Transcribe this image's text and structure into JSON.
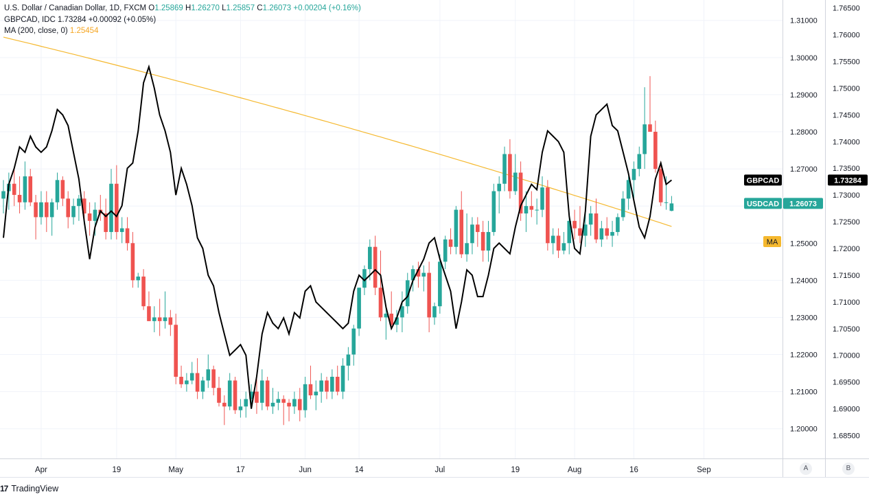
{
  "legend": {
    "main_title": "U.S. Dollar / Canadian Dollar, 1D, FXCM",
    "o_label": "O",
    "o_value": "1.25869",
    "h_label": "H",
    "h_value": "1.26270",
    "l_label": "L",
    "l_value": "1.25857",
    "c_label": "C",
    "c_value": "1.26073",
    "change": "+0.00204 (+0.16%)",
    "compare_title": "GBPCAD, IDC",
    "compare_value": "1.73284",
    "compare_change": "+0.00092 (+0.05%)",
    "ma_title": "MA (200, close, 0)",
    "ma_value": "1.25454"
  },
  "brand": {
    "name": "TradingView",
    "logo": "17"
  },
  "scale_buttons": {
    "left": "A",
    "right": "B"
  },
  "colors": {
    "up": "#26a69a",
    "down": "#ef5350",
    "compare": "#000000",
    "ma": "#f5b82e",
    "grid": "#f0f3fa"
  },
  "chart_data": {
    "type": "candlestick",
    "title": "U.S. Dollar / Canadian Dollar, 1D, FXCM",
    "x_tick_labels": [
      "Apr",
      "19",
      "May",
      "17",
      "Jun",
      "14",
      "Jul",
      "19",
      "Aug",
      "16",
      "Sep"
    ],
    "left_axis": {
      "label": "USDCAD",
      "ylim": [
        1.192,
        1.3155
      ],
      "ticks": [
        "1.20000",
        "1.21000",
        "1.22000",
        "1.23000",
        "1.24000",
        "1.25000",
        "1.26000",
        "1.27000",
        "1.28000",
        "1.29000",
        "1.30000",
        "1.31000"
      ]
    },
    "right_axis": {
      "label": "GBPCAD",
      "ylim": [
        1.6807,
        1.7665
      ],
      "ticks": [
        "1.68500",
        "1.69000",
        "1.69500",
        "1.70000",
        "1.70500",
        "1.71000",
        "1.71500",
        "1.72000",
        "1.72500",
        "1.73000",
        "1.73500",
        "1.74000",
        "1.74500",
        "1.75000",
        "1.75500",
        "1.76000",
        "1.76500"
      ]
    },
    "grid": true,
    "series": [
      {
        "name": "USDCAD",
        "type": "candlestick",
        "ohlc": [
          [
            1.262,
            1.267,
            1.258,
            1.264
          ],
          [
            1.264,
            1.269,
            1.259,
            1.266
          ],
          [
            1.266,
            1.27,
            1.26,
            1.263
          ],
          [
            1.263,
            1.268,
            1.258,
            1.261
          ],
          [
            1.261,
            1.272,
            1.259,
            1.268
          ],
          [
            1.268,
            1.27,
            1.26,
            1.261
          ],
          [
            1.261,
            1.263,
            1.251,
            1.257
          ],
          [
            1.257,
            1.264,
            1.255,
            1.261
          ],
          [
            1.261,
            1.264,
            1.253,
            1.257
          ],
          [
            1.257,
            1.262,
            1.252,
            1.261
          ],
          [
            1.261,
            1.269,
            1.259,
            1.267
          ],
          [
            1.267,
            1.268,
            1.26,
            1.262
          ],
          [
            1.262,
            1.264,
            1.254,
            1.257
          ],
          [
            1.257,
            1.262,
            1.255,
            1.26
          ],
          [
            1.26,
            1.263,
            1.256,
            1.262
          ],
          [
            1.262,
            1.264,
            1.255,
            1.258
          ],
          [
            1.258,
            1.261,
            1.252,
            1.256
          ],
          [
            1.256,
            1.261,
            1.252,
            1.259
          ],
          [
            1.259,
            1.263,
            1.256,
            1.258
          ],
          [
            1.258,
            1.262,
            1.251,
            1.253
          ],
          [
            1.253,
            1.27,
            1.251,
            1.266
          ],
          [
            1.266,
            1.271,
            1.251,
            1.253
          ],
          [
            1.253,
            1.257,
            1.25,
            1.254
          ],
          [
            1.254,
            1.257,
            1.248,
            1.25
          ],
          [
            1.25,
            1.253,
            1.238,
            1.24
          ],
          [
            1.24,
            1.242,
            1.238,
            1.241
          ],
          [
            1.241,
            1.243,
            1.232,
            1.233
          ],
          [
            1.233,
            1.237,
            1.229,
            1.229
          ],
          [
            1.229,
            1.233,
            1.226,
            1.23
          ],
          [
            1.23,
            1.235,
            1.225,
            1.229
          ],
          [
            1.229,
            1.237,
            1.227,
            1.23
          ],
          [
            1.23,
            1.232,
            1.225,
            1.228
          ],
          [
            1.228,
            1.231,
            1.212,
            1.214
          ],
          [
            1.214,
            1.217,
            1.211,
            1.212
          ],
          [
            1.212,
            1.215,
            1.21,
            1.213
          ],
          [
            1.213,
            1.218,
            1.212,
            1.215
          ],
          [
            1.215,
            1.219,
            1.208,
            1.21
          ],
          [
            1.21,
            1.214,
            1.208,
            1.213
          ],
          [
            1.213,
            1.22,
            1.211,
            1.216
          ],
          [
            1.216,
            1.217,
            1.209,
            1.211
          ],
          [
            1.211,
            1.214,
            1.206,
            1.207
          ],
          [
            1.207,
            1.209,
            1.201,
            1.206
          ],
          [
            1.206,
            1.215,
            1.205,
            1.213
          ],
          [
            1.213,
            1.214,
            1.204,
            1.205
          ],
          [
            1.205,
            1.208,
            1.203,
            1.206
          ],
          [
            1.206,
            1.21,
            1.203,
            1.208
          ],
          [
            1.208,
            1.212,
            1.206,
            1.21
          ],
          [
            1.21,
            1.214,
            1.204,
            1.207
          ],
          [
            1.207,
            1.216,
            1.205,
            1.213
          ],
          [
            1.213,
            1.214,
            1.205,
            1.206
          ],
          [
            1.206,
            1.211,
            1.204,
            1.207
          ],
          [
            1.207,
            1.21,
            1.205,
            1.208
          ],
          [
            1.208,
            1.209,
            1.201,
            1.207
          ],
          [
            1.207,
            1.208,
            1.202,
            1.206
          ],
          [
            1.206,
            1.21,
            1.204,
            1.208
          ],
          [
            1.208,
            1.211,
            1.202,
            1.205
          ],
          [
            1.205,
            1.214,
            1.203,
            1.212
          ],
          [
            1.212,
            1.217,
            1.208,
            1.209
          ],
          [
            1.209,
            1.213,
            1.205,
            1.21
          ],
          [
            1.21,
            1.215,
            1.207,
            1.213
          ],
          [
            1.213,
            1.214,
            1.208,
            1.21
          ],
          [
            1.21,
            1.216,
            1.208,
            1.214
          ],
          [
            1.214,
            1.217,
            1.209,
            1.21
          ],
          [
            1.21,
            1.219,
            1.208,
            1.217
          ],
          [
            1.217,
            1.222,
            1.213,
            1.22
          ],
          [
            1.22,
            1.228,
            1.217,
            1.227
          ],
          [
            1.227,
            1.238,
            1.225,
            1.238
          ],
          [
            1.238,
            1.244,
            1.236,
            1.243
          ],
          [
            1.243,
            1.251,
            1.24,
            1.249
          ],
          [
            1.249,
            1.252,
            1.236,
            1.238
          ],
          [
            1.238,
            1.248,
            1.229,
            1.23
          ],
          [
            1.23,
            1.233,
            1.224,
            1.231
          ],
          [
            1.231,
            1.237,
            1.227,
            1.228
          ],
          [
            1.228,
            1.232,
            1.226,
            1.23
          ],
          [
            1.23,
            1.237,
            1.226,
            1.233
          ],
          [
            1.233,
            1.242,
            1.231,
            1.24
          ],
          [
            1.24,
            1.244,
            1.237,
            1.243
          ],
          [
            1.243,
            1.245,
            1.238,
            1.241
          ],
          [
            1.241,
            1.244,
            1.237,
            1.242
          ],
          [
            1.242,
            1.245,
            1.226,
            1.23
          ],
          [
            1.23,
            1.234,
            1.228,
            1.233
          ],
          [
            1.233,
            1.247,
            1.231,
            1.245
          ],
          [
            1.245,
            1.252,
            1.243,
            1.251
          ],
          [
            1.251,
            1.254,
            1.247,
            1.249
          ],
          [
            1.249,
            1.26,
            1.247,
            1.259
          ],
          [
            1.259,
            1.264,
            1.246,
            1.247
          ],
          [
            1.247,
            1.258,
            1.245,
            1.25
          ],
          [
            1.25,
            1.257,
            1.247,
            1.255
          ],
          [
            1.255,
            1.257,
            1.249,
            1.253
          ],
          [
            1.253,
            1.256,
            1.245,
            1.248
          ],
          [
            1.248,
            1.256,
            1.245,
            1.253
          ],
          [
            1.253,
            1.266,
            1.252,
            1.264
          ],
          [
            1.264,
            1.268,
            1.258,
            1.266
          ],
          [
            1.266,
            1.276,
            1.264,
            1.274
          ],
          [
            1.274,
            1.278,
            1.262,
            1.264
          ],
          [
            1.264,
            1.274,
            1.263,
            1.269
          ],
          [
            1.269,
            1.272,
            1.256,
            1.258
          ],
          [
            1.258,
            1.264,
            1.253,
            1.26
          ],
          [
            1.26,
            1.264,
            1.257,
            1.259
          ],
          [
            1.259,
            1.262,
            1.255,
            1.259
          ],
          [
            1.259,
            1.268,
            1.257,
            1.265
          ],
          [
            1.265,
            1.267,
            1.248,
            1.25
          ],
          [
            1.25,
            1.254,
            1.247,
            1.252
          ],
          [
            1.252,
            1.254,
            1.246,
            1.248
          ],
          [
            1.248,
            1.253,
            1.247,
            1.25
          ],
          [
            1.25,
            1.258,
            1.247,
            1.256
          ],
          [
            1.256,
            1.259,
            1.251,
            1.254
          ],
          [
            1.254,
            1.26,
            1.25,
            1.252
          ],
          [
            1.252,
            1.258,
            1.249,
            1.255
          ],
          [
            1.255,
            1.26,
            1.252,
            1.258
          ],
          [
            1.258,
            1.262,
            1.25,
            1.251
          ],
          [
            1.251,
            1.256,
            1.249,
            1.254
          ],
          [
            1.254,
            1.257,
            1.251,
            1.252
          ],
          [
            1.252,
            1.256,
            1.249,
            1.253
          ],
          [
            1.253,
            1.258,
            1.252,
            1.257
          ],
          [
            1.257,
            1.264,
            1.256,
            1.262
          ],
          [
            1.262,
            1.268,
            1.259,
            1.267
          ],
          [
            1.267,
            1.272,
            1.262,
            1.27
          ],
          [
            1.27,
            1.276,
            1.268,
            1.274
          ],
          [
            1.274,
            1.292,
            1.27,
            1.282
          ],
          [
            1.282,
            1.295,
            1.281,
            1.28
          ],
          [
            1.28,
            1.283,
            1.269,
            1.27
          ],
          [
            1.27,
            1.272,
            1.26,
            1.261
          ],
          [
            1.261,
            1.268,
            1.259,
            1.261
          ],
          [
            1.2587,
            1.2627,
            1.2586,
            1.2607
          ]
        ]
      },
      {
        "name": "GBPCAD",
        "type": "line",
        "axis": "right",
        "values": [
          1.722,
          1.732,
          1.735,
          1.739,
          1.738,
          1.741,
          1.739,
          1.738,
          1.739,
          1.742,
          1.746,
          1.745,
          1.743,
          1.738,
          1.733,
          1.725,
          1.718,
          1.724,
          1.727,
          1.726,
          1.727,
          1.726,
          1.728,
          1.735,
          1.736,
          1.742,
          1.751,
          1.754,
          1.75,
          1.745,
          1.742,
          1.738,
          1.73,
          1.735,
          1.732,
          1.728,
          1.722,
          1.72,
          1.715,
          1.713,
          1.708,
          1.704,
          1.7,
          1.701,
          1.702,
          1.7,
          1.69,
          1.696,
          1.704,
          1.708,
          1.706,
          1.705,
          1.707,
          1.704,
          1.708,
          1.707,
          1.712,
          1.713,
          1.71,
          1.709,
          1.708,
          1.707,
          1.706,
          1.705,
          1.706,
          1.712,
          1.715,
          1.714,
          1.715,
          1.716,
          1.715,
          1.709,
          1.705,
          1.707,
          1.71,
          1.711,
          1.714,
          1.716,
          1.718,
          1.721,
          1.722,
          1.718,
          1.715,
          1.712,
          1.705,
          1.71,
          1.716,
          1.715,
          1.711,
          1.711,
          1.715,
          1.72,
          1.721,
          1.72,
          1.719,
          1.724,
          1.728,
          1.73,
          1.732,
          1.731,
          1.738,
          1.742,
          1.741,
          1.74,
          1.738,
          1.726,
          1.72,
          1.719,
          1.727,
          1.741,
          1.745,
          1.746,
          1.747,
          1.743,
          1.742,
          1.738,
          1.734,
          1.729,
          1.724,
          1.722,
          1.726,
          1.733,
          1.736,
          1.732,
          1.7328
        ]
      },
      {
        "name": "MA (200, close, 0)",
        "type": "line",
        "values_start": 1.3055,
        "values_end": 1.2545
      }
    ],
    "last_labels": {
      "compare": {
        "name": "GBPCAD",
        "value": "1.73284"
      },
      "main": {
        "name": "USDCAD",
        "value": "1.26073"
      },
      "ma": {
        "name": "MA"
      }
    }
  }
}
